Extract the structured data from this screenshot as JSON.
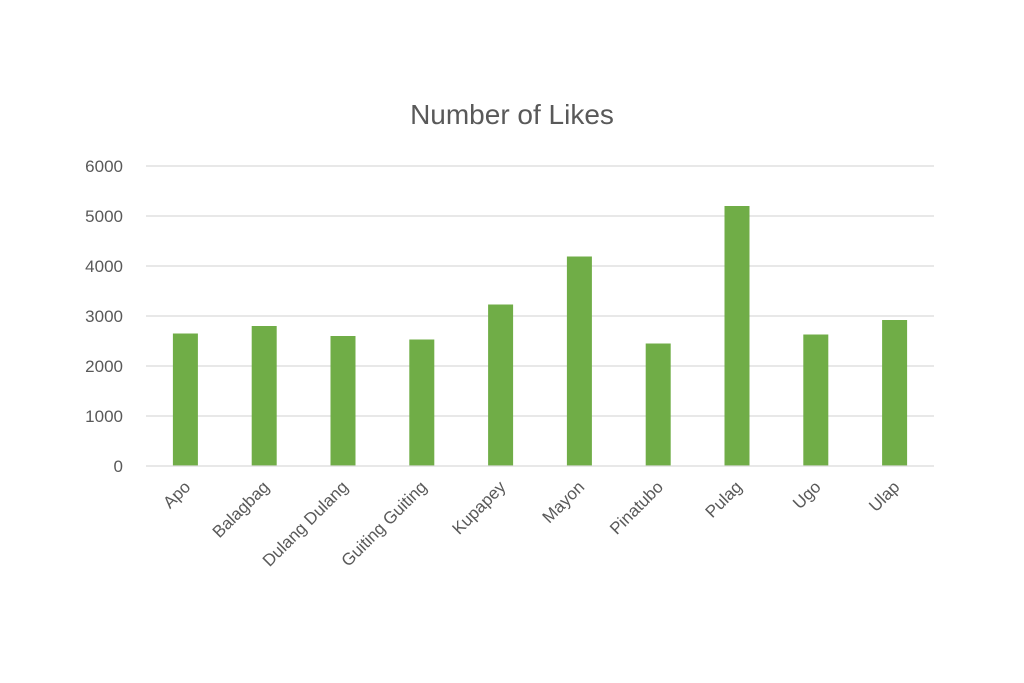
{
  "chart_data": {
    "type": "bar",
    "title": "Number of Likes",
    "xlabel": "",
    "ylabel": "",
    "categories": [
      "Apo",
      "Balagbag",
      "Dulang Dulang",
      "Guiting Guiting",
      "Kupapey",
      "Mayon",
      "Pinatubo",
      "Pulag",
      "Ugo",
      "Ulap"
    ],
    "values": [
      2650,
      2800,
      2600,
      2530,
      3230,
      4190,
      2450,
      5200,
      2630,
      2920
    ],
    "ylim": [
      0,
      6000
    ],
    "yticks": [
      "0",
      "1000",
      "2000",
      "3000",
      "4000",
      "5000",
      "6000"
    ],
    "grid": true,
    "legend": "none",
    "bar_color": "#70ad47"
  }
}
